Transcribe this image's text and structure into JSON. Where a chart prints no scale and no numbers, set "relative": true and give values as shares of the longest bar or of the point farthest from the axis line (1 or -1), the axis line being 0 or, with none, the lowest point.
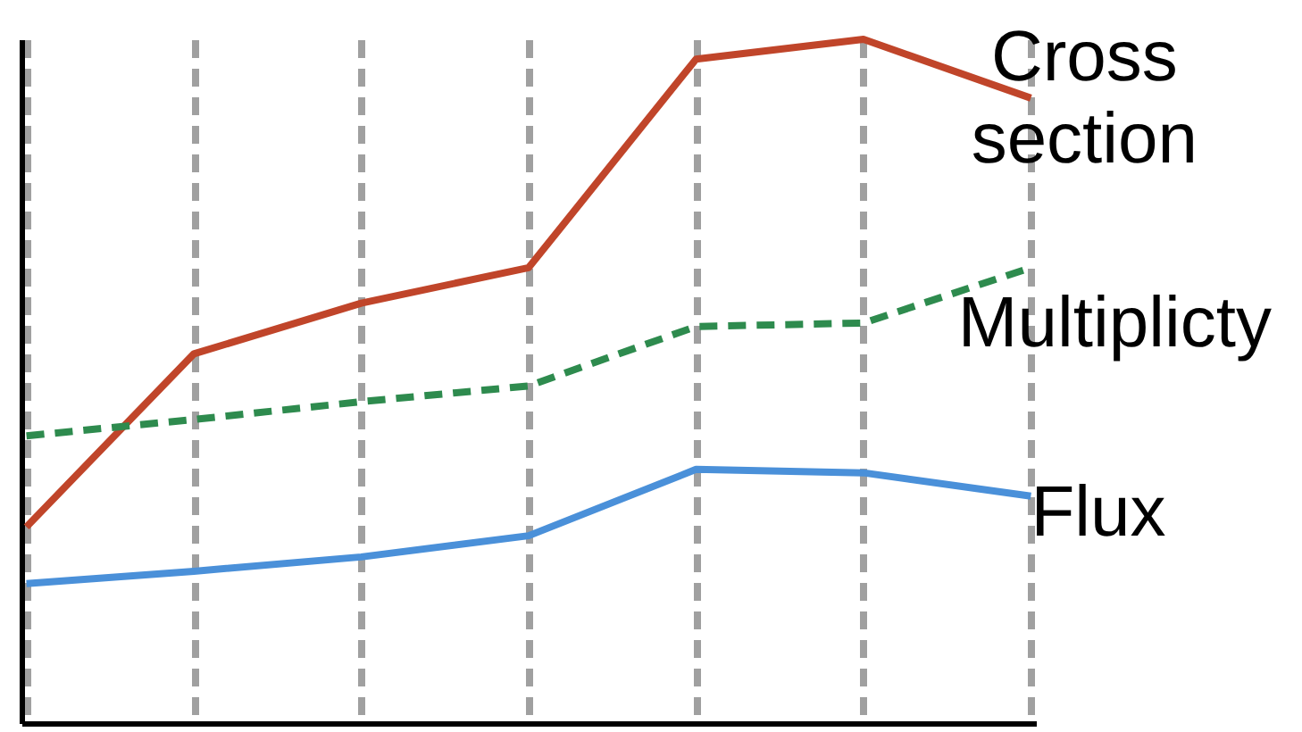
{
  "chart_data": {
    "type": "line",
    "relative": true,
    "grid": "x",
    "legend": false,
    "categories": [
      null,
      null,
      null,
      null,
      null,
      null,
      null
    ],
    "series": [
      {
        "name": "Cross section",
        "color": "#c0452a",
        "values": [
          0.287,
          0.54,
          0.614,
          0.666,
          0.971,
          1,
          0.914
        ]
      },
      {
        "name": "Multiplicty",
        "color": "#2e8b4e",
        "line_style": "dashed",
        "values": [
          0.42,
          0.444,
          0.47,
          0.493,
          0.58,
          0.585,
          0.666
        ]
      },
      {
        "name": "Flux",
        "color": "#4a90d9",
        "values": [
          0.204,
          0.222,
          0.243,
          0.274,
          0.371,
          0.366,
          0.332
        ]
      }
    ]
  }
}
